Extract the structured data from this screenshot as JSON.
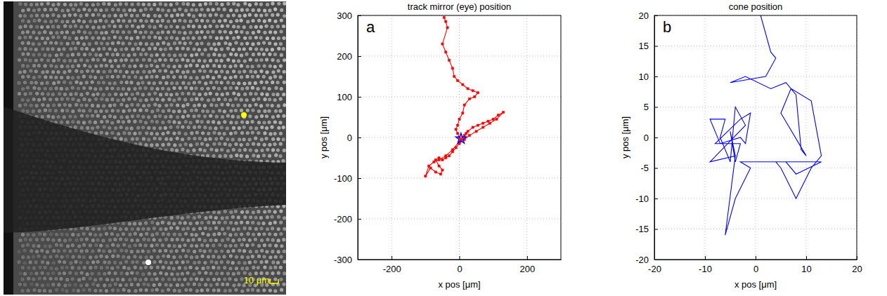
{
  "image": {
    "scale_bar_label": "10 μm"
  },
  "chart_data": [
    {
      "type": "line",
      "title": "track mirror (eye) position",
      "panel_label": "a",
      "x_label": "x pos [μm]",
      "y_label": "y pos [μm]",
      "xlim": [
        -300,
        300
      ],
      "xticks": [
        -200,
        0,
        200
      ],
      "ylim": [
        -300,
        300
      ],
      "yticks": [
        -300,
        -200,
        -100,
        0,
        100,
        200,
        300
      ],
      "grid": true,
      "series": [
        {
          "type": "line",
          "color": "#ff0000",
          "marker": "square",
          "x": [
            -45,
            -40,
            -35,
            -50,
            -40,
            -30,
            -20,
            -15,
            -5,
            10,
            25,
            40,
            55,
            45,
            30,
            15,
            10,
            0,
            -5,
            -10,
            -5,
            0,
            5,
            15,
            25,
            40,
            55,
            70,
            85,
            100,
            115,
            130,
            110,
            90,
            70,
            50,
            30,
            15,
            0,
            -10,
            -20,
            -30,
            -40,
            -50,
            -60,
            -70,
            -60,
            -50,
            -55,
            -70,
            -85,
            -100,
            -90,
            -75,
            -60,
            -40,
            -20,
            0,
            10,
            20
          ],
          "values": [
            295,
            285,
            270,
            230,
            210,
            190,
            170,
            150,
            140,
            130,
            120,
            115,
            110,
            100,
            95,
            80,
            60,
            45,
            30,
            20,
            10,
            0,
            -5,
            5,
            15,
            25,
            30,
            35,
            40,
            45,
            55,
            62,
            45,
            35,
            25,
            15,
            5,
            -5,
            -15,
            -25,
            -35,
            -45,
            -50,
            -55,
            -50,
            -55,
            -70,
            -80,
            -90,
            -85,
            -75,
            -95,
            -70,
            -60,
            -55,
            -45,
            -30,
            -10,
            0,
            10
          ]
        },
        {
          "type": "scatter",
          "color": "#0000ff",
          "marker": "star",
          "x": [
            5
          ],
          "values": [
            -3
          ]
        }
      ]
    },
    {
      "type": "line",
      "title": "cone position",
      "panel_label": "b",
      "x_label": "x pos [μm]",
      "y_label": "y pos [μm]",
      "xlim": [
        -20,
        20
      ],
      "xticks": [
        -20,
        -10,
        0,
        10,
        20
      ],
      "ylim": [
        -20,
        20
      ],
      "yticks": [
        -20,
        -15,
        -10,
        -5,
        0,
        5,
        10,
        15,
        20
      ],
      "grid": true,
      "series": [
        {
          "type": "line",
          "color": "#0000ff",
          "x": [
            1,
            3,
            4,
            2,
            -5,
            -2,
            3,
            6,
            8,
            9,
            10,
            5,
            7,
            11,
            13,
            11,
            8,
            5,
            4,
            13,
            8,
            6,
            2,
            -3,
            -1,
            -4,
            -6,
            -4,
            -9,
            -2,
            -4,
            -5,
            -7,
            -6,
            -9,
            -7,
            -3,
            -2,
            -1,
            -3,
            -8,
            -3,
            -4,
            -5,
            -4
          ],
          "values": [
            20,
            14,
            13,
            10,
            9,
            10,
            8,
            9,
            7,
            -2,
            -3,
            4,
            8,
            6,
            -3,
            -5,
            -10,
            -5,
            -4,
            -4,
            -6,
            -4,
            -4,
            -4,
            -5,
            -10,
            -16,
            -3,
            -4,
            2,
            5,
            -4,
            0,
            3,
            3,
            -1,
            0,
            -1,
            4,
            3,
            -1,
            -1,
            -4,
            1,
            -3
          ]
        }
      ]
    }
  ]
}
